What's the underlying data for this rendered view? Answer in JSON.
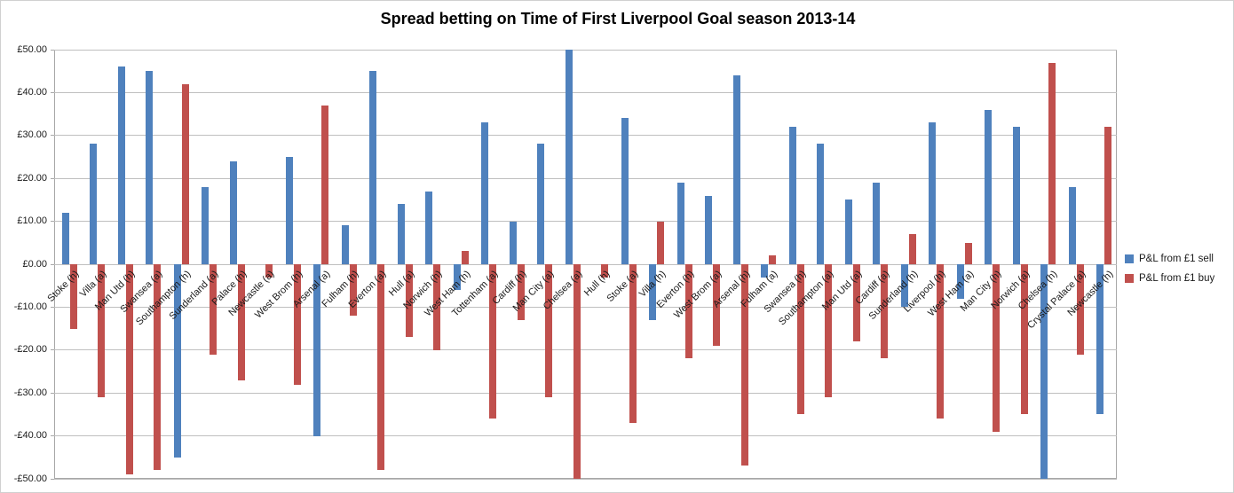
{
  "chart_data": {
    "type": "bar",
    "title": "Spread betting on Time of First Liverpool Goal season 2013-14",
    "categories": [
      "Stoke (h)",
      "Villa (a)",
      "Man Utd (h)",
      "Swansea (a)",
      "Southampton (h)",
      "Sunderland (a)",
      "Palace (h)",
      "Newcastle (a)",
      "West Brom (h)",
      "Arsenal (a)",
      "Fulham (h)",
      "Everton (a)",
      "Hull (a)",
      "Norwich (h)",
      "West Ham (h)",
      "Tottenham (a)",
      "Cardiff (h)",
      "Man City (a)",
      "Chelsea (a)",
      "Hull (h)",
      "Stoke (a)",
      "Villa (h)",
      "Everton (h)",
      "West Brom (a)",
      "Arsenal (h)",
      "Fulham (a)",
      "Swansea (h)",
      "Southampton (a)",
      "Man Utd (a)",
      "Cardiff (a)",
      "Sunderland (h)",
      "Liverpool (h)",
      "West Ham (a)",
      "Man City (h)",
      "Norwich (a)",
      "Chelsea (h)",
      "Crystal Palace (a)",
      "Newcastle (h)"
    ],
    "series": [
      {
        "name": "P&L from £1 sell",
        "color": "#4f81bd",
        "values": [
          12,
          28,
          46,
          45,
          -45,
          18,
          24,
          0,
          25,
          -40,
          9,
          45,
          14,
          17,
          -6,
          33,
          10,
          28,
          50,
          0,
          34,
          -13,
          19,
          16,
          44,
          -3,
          32,
          28,
          15,
          19,
          -10,
          33,
          -8,
          36,
          32,
          -50,
          18,
          -35
        ]
      },
      {
        "name": "P&L from £1 buy",
        "color": "#c0504d",
        "values": [
          -15,
          -31,
          -49,
          -48,
          42,
          -21,
          -27,
          -3,
          -28,
          37,
          -12,
          -48,
          -17,
          -20,
          3,
          -36,
          -13,
          -31,
          -53,
          -3,
          -37,
          10,
          -22,
          -19,
          -47,
          2,
          -35,
          -31,
          -18,
          -22,
          7,
          -36,
          5,
          -39,
          -35,
          47,
          -21,
          32
        ]
      }
    ],
    "xlabel": "",
    "ylabel": "",
    "ylim": [
      -50,
      50
    ],
    "ytick_step": 10,
    "ytick_labels": [
      "£50.00",
      "£40.00",
      "£30.00",
      "£20.00",
      "£10.00",
      "£0.00",
      "-£10.00",
      "-£20.00",
      "-£30.00",
      "-£40.00",
      "-£50.00"
    ],
    "grid": true,
    "legend_position": "right"
  }
}
